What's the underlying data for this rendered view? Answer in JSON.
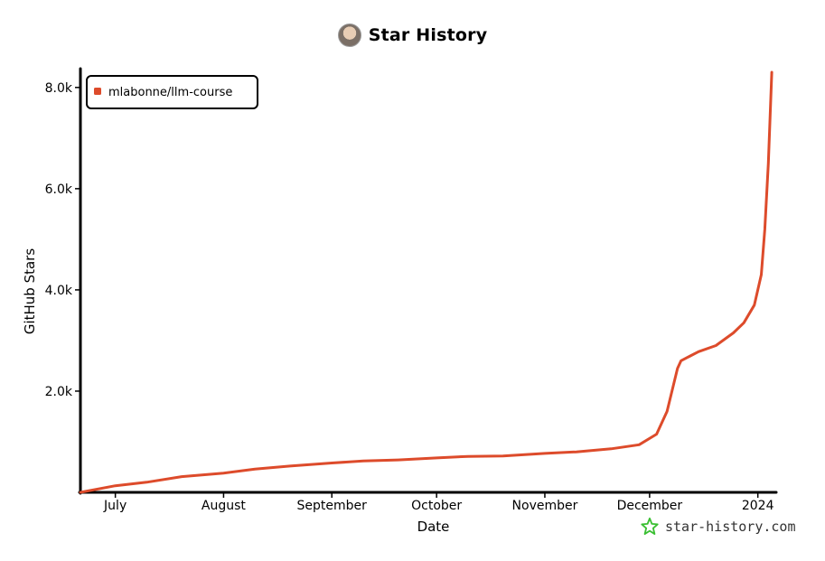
{
  "header": {
    "title": "Star History",
    "avatar_icon": "user-avatar-icon"
  },
  "brand": {
    "label": "star-history.com",
    "icon": "star-outline-icon",
    "icon_color": "#3bbf33"
  },
  "colors": {
    "series": "#dd4b2b",
    "axis": "#000000"
  },
  "chart_data": {
    "type": "line",
    "xlabel": "Date",
    "ylabel": "GitHub Stars",
    "x_ticks": [
      "July",
      "August",
      "September",
      "October",
      "November",
      "December",
      "2024"
    ],
    "y_ticks": [
      "2.0k",
      "4.0k",
      "6.0k",
      "8.0k"
    ],
    "y_tick_values": [
      2000,
      4000,
      6000,
      8000
    ],
    "xlim": [
      "2023-06-21",
      "2024-01-06"
    ],
    "ylim": [
      0,
      8300
    ],
    "grid": false,
    "legend_position": "top-left",
    "series": [
      {
        "name": "mlabonne/llm-course",
        "x": [
          "2023-06-21",
          "2023-07-01",
          "2023-07-10",
          "2023-07-20",
          "2023-08-01",
          "2023-08-10",
          "2023-08-20",
          "2023-09-01",
          "2023-09-10",
          "2023-09-20",
          "2023-10-01",
          "2023-10-10",
          "2023-10-20",
          "2023-11-01",
          "2023-11-10",
          "2023-11-20",
          "2023-11-28",
          "2023-12-03",
          "2023-12-06",
          "2023-12-09",
          "2023-12-10",
          "2023-12-15",
          "2023-12-20",
          "2023-12-25",
          "2023-12-28",
          "2023-12-31",
          "2024-01-02",
          "2024-01-03",
          "2024-01-04",
          "2024-01-05"
        ],
        "y": [
          0,
          130,
          200,
          310,
          380,
          460,
          520,
          580,
          620,
          640,
          680,
          710,
          720,
          770,
          800,
          860,
          940,
          1150,
          1600,
          2450,
          2600,
          2780,
          2900,
          3150,
          3350,
          3700,
          4300,
          5200,
          6500,
          8300
        ]
      }
    ]
  }
}
